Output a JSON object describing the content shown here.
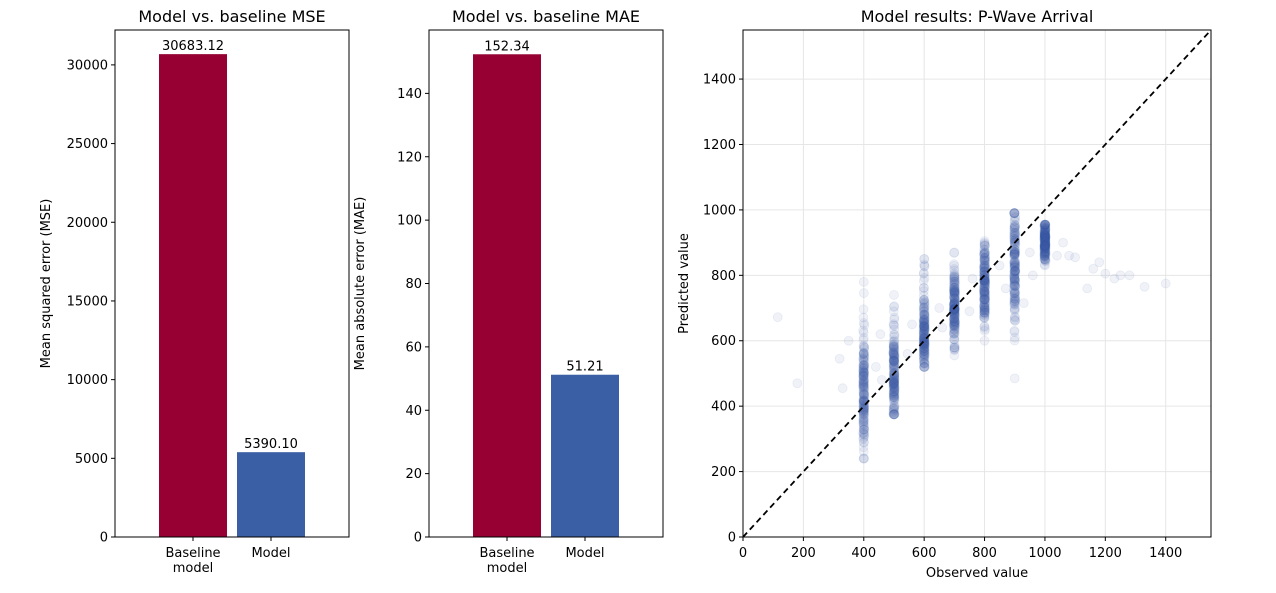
{
  "chart_data": [
    {
      "type": "bar",
      "title": "Model vs. baseline MSE",
      "xlabel": "",
      "ylabel": "Mean squared error (MSE)",
      "categories": [
        [
          "Baseline",
          "model"
        ],
        [
          "Model"
        ]
      ],
      "values": [
        30683.12,
        5390.1
      ],
      "value_labels": [
        "30683.12",
        "5390.10"
      ],
      "colors": [
        "#960033",
        "#3a5fa5"
      ],
      "ylim": [
        0,
        32217
      ],
      "yticks": [
        0,
        5000,
        10000,
        15000,
        20000,
        25000,
        30000
      ],
      "grid": false
    },
    {
      "type": "bar",
      "title": "Model vs. baseline MAE",
      "xlabel": "",
      "ylabel": "Mean absolute error (MAE)",
      "categories": [
        [
          "Baseline",
          "model"
        ],
        [
          "Model"
        ]
      ],
      "values": [
        152.34,
        51.21
      ],
      "value_labels": [
        "152.34",
        "51.21"
      ],
      "colors": [
        "#960033",
        "#3a5fa5"
      ],
      "ylim": [
        0,
        160
      ],
      "yticks": [
        0,
        20,
        40,
        60,
        80,
        100,
        120,
        140
      ],
      "grid": false
    },
    {
      "type": "scatter",
      "title": "Model results: P-Wave Arrival",
      "xlabel": "Observed value",
      "ylabel": "Predicted value",
      "xlim": [
        0,
        1550
      ],
      "ylim": [
        0,
        1550
      ],
      "xticks": [
        0,
        200,
        400,
        600,
        800,
        1000,
        1200,
        1400
      ],
      "yticks": [
        0,
        200,
        400,
        600,
        800,
        1000,
        1200,
        1400
      ],
      "grid": true,
      "reference_line": "y = x (dashed, black)",
      "point_color": "#3a5fa5",
      "point_alpha": 0.08,
      "columns": [
        {
          "x": 400,
          "y_min": 240,
          "y_max": 780,
          "center": 430,
          "spread": 95
        },
        {
          "x": 500,
          "y_min": 375,
          "y_max": 740,
          "center": 500,
          "spread": 70
        },
        {
          "x": 600,
          "y_min": 520,
          "y_max": 850,
          "center": 620,
          "spread": 55
        },
        {
          "x": 700,
          "y_min": 555,
          "y_max": 870,
          "center": 695,
          "spread": 55
        },
        {
          "x": 800,
          "y_min": 600,
          "y_max": 905,
          "center": 770,
          "spread": 60
        },
        {
          "x": 900,
          "y_min": 485,
          "y_max": 990,
          "center": 850,
          "spread": 75
        },
        {
          "x": 1000,
          "y_min": 830,
          "y_max": 955,
          "center": 905,
          "spread": 35
        }
      ],
      "outliers": [
        {
          "x": 115,
          "y": 672
        },
        {
          "x": 180,
          "y": 470
        },
        {
          "x": 320,
          "y": 545
        },
        {
          "x": 330,
          "y": 455
        },
        {
          "x": 350,
          "y": 600
        },
        {
          "x": 440,
          "y": 520
        },
        {
          "x": 460,
          "y": 480
        },
        {
          "x": 455,
          "y": 620
        },
        {
          "x": 545,
          "y": 560
        },
        {
          "x": 560,
          "y": 650
        },
        {
          "x": 650,
          "y": 700
        },
        {
          "x": 660,
          "y": 640
        },
        {
          "x": 750,
          "y": 690
        },
        {
          "x": 760,
          "y": 790
        },
        {
          "x": 850,
          "y": 830
        },
        {
          "x": 870,
          "y": 760
        },
        {
          "x": 950,
          "y": 870
        },
        {
          "x": 960,
          "y": 800
        },
        {
          "x": 1040,
          "y": 860
        },
        {
          "x": 1060,
          "y": 900
        },
        {
          "x": 1080,
          "y": 860
        },
        {
          "x": 1100,
          "y": 855
        },
        {
          "x": 1140,
          "y": 760
        },
        {
          "x": 1160,
          "y": 820
        },
        {
          "x": 1180,
          "y": 840
        },
        {
          "x": 1200,
          "y": 805
        },
        {
          "x": 1230,
          "y": 790
        },
        {
          "x": 1250,
          "y": 800
        },
        {
          "x": 1280,
          "y": 800
        },
        {
          "x": 1330,
          "y": 765
        },
        {
          "x": 1400,
          "y": 775
        },
        {
          "x": 930,
          "y": 715
        }
      ]
    }
  ]
}
